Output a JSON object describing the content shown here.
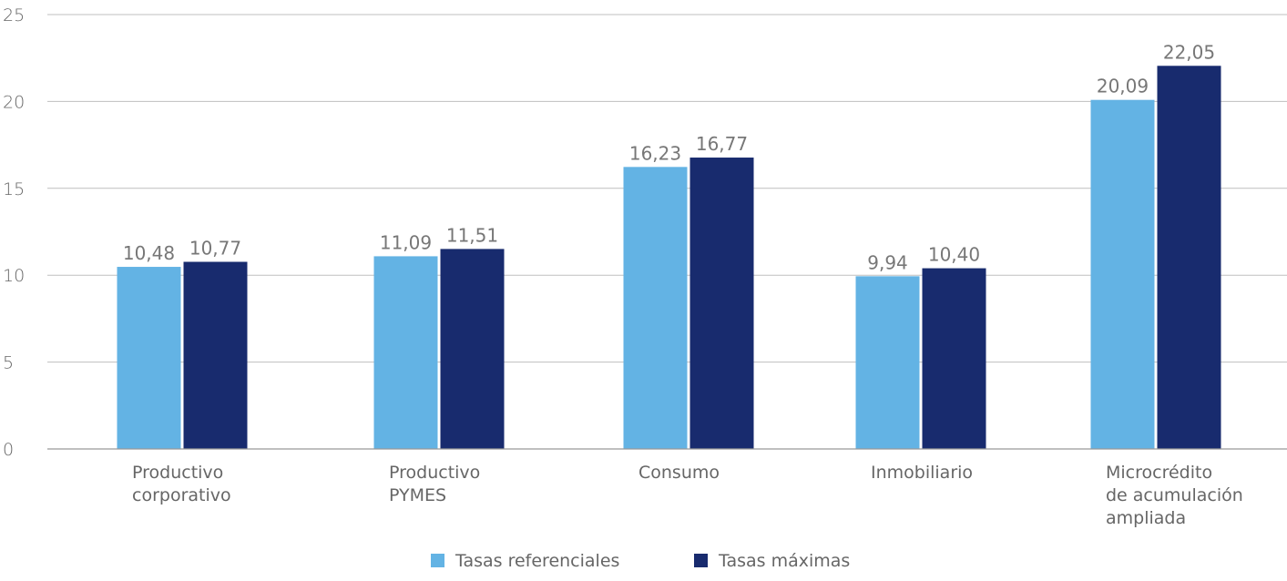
{
  "chart_data": {
    "type": "bar",
    "title": "",
    "xlabel": "",
    "ylabel": "",
    "ylim": [
      0,
      25
    ],
    "yticks": [
      0,
      5,
      10,
      15,
      20,
      25
    ],
    "grid": "horizontal",
    "legend_position": "bottom-center",
    "categories": [
      [
        "Productivo",
        "corporativo"
      ],
      [
        "Productivo",
        "PYMES"
      ],
      [
        "Consumo"
      ],
      [
        "Inmobiliario"
      ],
      [
        "Microcrédito",
        "de acumulación",
        "ampliada"
      ]
    ],
    "series": [
      {
        "name": "Tasas referenciales",
        "color": "#63b3e4",
        "values": [
          10.48,
          11.09,
          16.23,
          9.94,
          20.09
        ],
        "labels": [
          "10,48",
          "11,09",
          "16,23",
          "9,94",
          "20,09"
        ]
      },
      {
        "name": "Tasas máximas",
        "color": "#182b6e",
        "values": [
          10.77,
          11.51,
          16.77,
          10.4,
          22.05
        ],
        "labels": [
          "10,77",
          "11,51",
          "16,77",
          "10,40",
          "22,05"
        ]
      }
    ],
    "axis_color": "#999999",
    "grid_color": "#bfbfbf"
  }
}
